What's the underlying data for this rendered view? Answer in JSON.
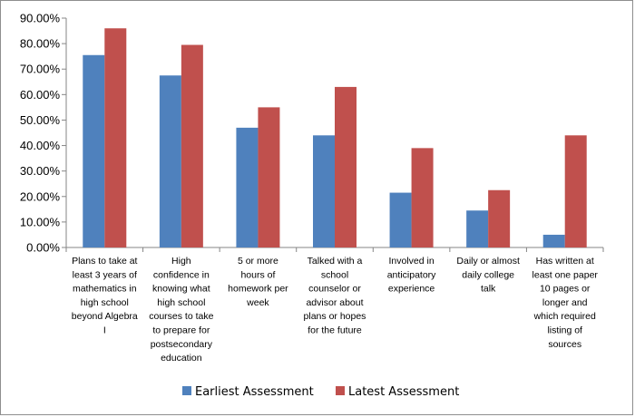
{
  "chart_data": {
    "type": "bar",
    "title": "",
    "xlabel": "",
    "ylabel": "",
    "ylim": [
      0,
      90
    ],
    "ytick_step": 10,
    "ytick_labels": [
      "0.00%",
      "10.00%",
      "20.00%",
      "30.00%",
      "40.00%",
      "50.00%",
      "60.00%",
      "70.00%",
      "80.00%",
      "90.00%"
    ],
    "grid": false,
    "legend_position": "bottom",
    "categories": [
      "Plans to take at least 3 years of mathematics in high school beyond Algebra I",
      "High confidence in knowing what high school courses to take to prepare for postsecondary education",
      "5 or more hours of homework per week",
      "Talked with a school counselor or advisor about plans or hopes for the future",
      "Involved in anticipatory experience",
      "Daily or almost daily college talk",
      "Has written at least one paper 10 pages or longer and which required listing of sources"
    ],
    "category_lines": [
      [
        "Plans to take at",
        "least 3 years of",
        "mathematics in",
        "high school",
        "beyond Algebra",
        "I"
      ],
      [
        "High",
        "confidence in",
        "knowing what",
        "high school",
        "courses to take",
        "to prepare for",
        "postsecondary",
        "education"
      ],
      [
        "5 or more",
        "hours of",
        "homework per",
        "week"
      ],
      [
        "Talked with a",
        "school",
        "counselor or",
        "advisor about",
        "plans or hopes",
        "for the future"
      ],
      [
        "Involved in",
        "anticipatory",
        "experience"
      ],
      [
        "Daily or almost",
        "daily college",
        "talk"
      ],
      [
        "Has written at",
        "least one paper",
        "10 pages or",
        "longer and",
        "which required",
        "listing of",
        "sources"
      ]
    ],
    "series": [
      {
        "name": "Earliest Assessment",
        "color": "#4f81bd",
        "values": [
          75.5,
          67.5,
          47,
          44,
          21.5,
          14.5,
          5
        ]
      },
      {
        "name": "Latest Assessment",
        "color": "#c0504d",
        "values": [
          86,
          79.5,
          55,
          63,
          39,
          22.5,
          44
        ]
      }
    ]
  }
}
